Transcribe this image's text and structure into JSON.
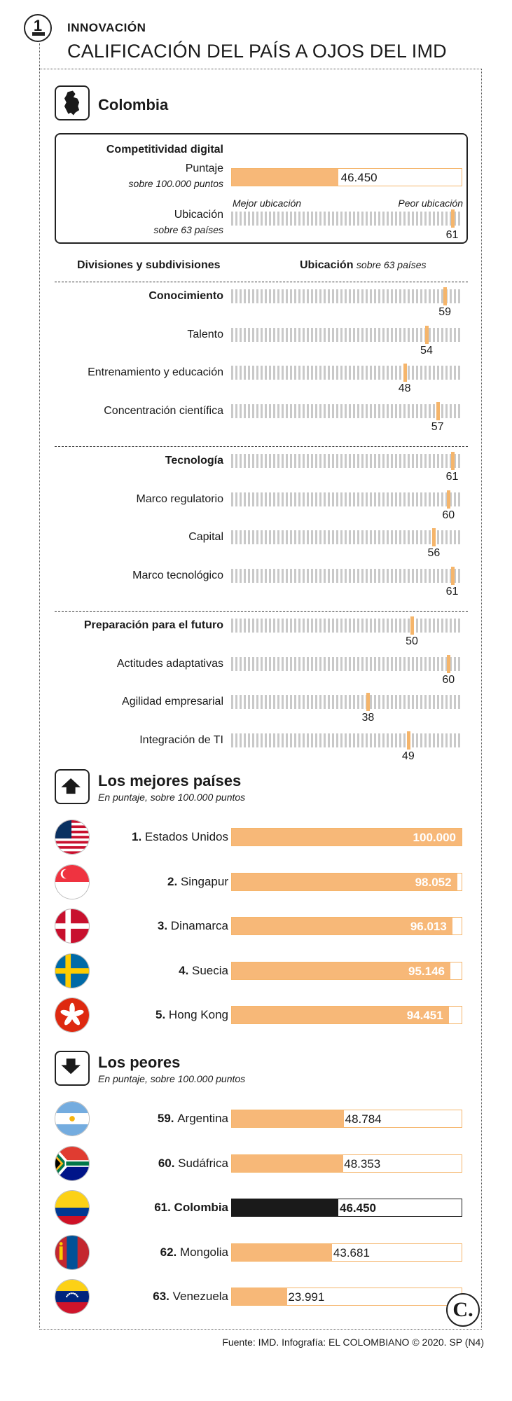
{
  "header": {
    "badge_number": "1",
    "kicker": "INNOVACIÓN",
    "title": "CALIFICACIÓN DEL PAÍS A OJOS DEL IMD"
  },
  "country_section": {
    "name": "Colombia",
    "icon": "colombia-map-icon",
    "panel": {
      "title": "Competitividad digital",
      "score_label": "Puntaje",
      "score_sub": "sobre 100.000 puntos",
      "score_value": "46.450",
      "score_fraction": 0.4645,
      "best_label": "Mejor ubicación",
      "worst_label": "Peor ubicación",
      "rank_label": "Ubicación",
      "rank_sub": "sobre 63 países",
      "rank_value": 61
    }
  },
  "divisions_header": {
    "left": "Divisiones y subdivisiones",
    "right_bold": "Ubicación",
    "right_italic": "sobre 63 países"
  },
  "chart_data": {
    "type": "bar",
    "title": "Competitividad digital: ubicación de Colombia por divisiones y subdivisiones (sobre 63 países)",
    "total_countries": 63,
    "groups": [
      {
        "name": "Conocimiento",
        "rank": 59,
        "subdivisions": [
          {
            "name": "Talento",
            "rank": 54
          },
          {
            "name": "Entrenamiento y educación",
            "rank": 48
          },
          {
            "name": "Concentración científica",
            "rank": 57
          }
        ]
      },
      {
        "name": "Tecnología",
        "rank": 61,
        "subdivisions": [
          {
            "name": "Marco regulatorio",
            "rank": 60
          },
          {
            "name": "Capital",
            "rank": 56
          },
          {
            "name": "Marco tecnológico",
            "rank": 61
          }
        ]
      },
      {
        "name": "Preparación para el futuro",
        "rank": 50,
        "subdivisions": [
          {
            "name": "Actitudes adaptativas",
            "rank": 60
          },
          {
            "name": "Agilidad empresarial",
            "rank": 38
          },
          {
            "name": "Integración de TI",
            "rank": 49
          }
        ]
      }
    ],
    "best": {
      "title": "Los mejores países",
      "subtitle": "En puntaje, sobre 100.000 puntos",
      "max": 100000,
      "countries": [
        {
          "rank": "1.",
          "name": "Estados Unidos",
          "value": 100000,
          "label": "100.000",
          "flag": "usa"
        },
        {
          "rank": "2.",
          "name": "Singapur",
          "value": 98052,
          "label": "98.052",
          "flag": "singapore"
        },
        {
          "rank": "3.",
          "name": "Dinamarca",
          "value": 96013,
          "label": "96.013",
          "flag": "denmark"
        },
        {
          "rank": "4.",
          "name": "Suecia",
          "value": 95146,
          "label": "95.146",
          "flag": "sweden"
        },
        {
          "rank": "5.",
          "name": "Hong Kong",
          "value": 94451,
          "label": "94.451",
          "flag": "hongkong"
        }
      ]
    },
    "worst": {
      "title": "Los peores",
      "subtitle": "En puntaje, sobre 100.000 puntos",
      "max": 100000,
      "countries": [
        {
          "rank": "59.",
          "name": "Argentina",
          "value": 48784,
          "label": "48.784",
          "flag": "argentina",
          "highlight": false
        },
        {
          "rank": "60.",
          "name": "Sudáfrica",
          "value": 48353,
          "label": "48.353",
          "flag": "southafrica",
          "highlight": false
        },
        {
          "rank": "61.",
          "name": "Colombia",
          "value": 46450,
          "label": "46.450",
          "flag": "colombia",
          "highlight": true
        },
        {
          "rank": "62.",
          "name": "Mongolia",
          "value": 43681,
          "label": "43.681",
          "flag": "mongolia",
          "highlight": false
        },
        {
          "rank": "63.",
          "name": "Venezuela",
          "value": 23991,
          "label": "23.991",
          "flag": "venezuela",
          "highlight": false
        }
      ]
    }
  },
  "colors": {
    "accent": "#f7b878",
    "accent_border": "#f5b56b",
    "dark": "#1a1a1a",
    "strip": "#c9c9c9"
  },
  "logo": "C.",
  "source": "Fuente: IMD. Infografía: EL COLOMBIANO © 2020. SP (N4)"
}
